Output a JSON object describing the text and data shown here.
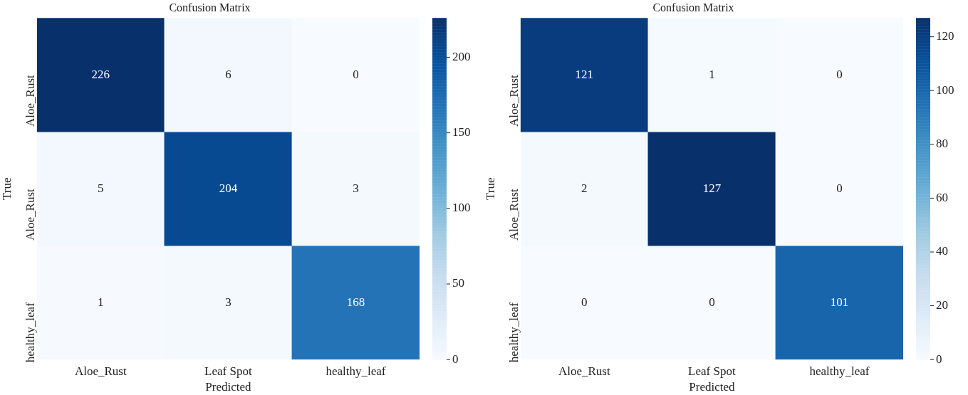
{
  "chart_data": [
    {
      "type": "heatmap",
      "title": "Confusion Matrix",
      "xlabel": "Predicted",
      "ylabel": "True",
      "categories": [
        "Aloe_Rust",
        "Leaf Spot",
        "healthy_leaf"
      ],
      "y_categories": [
        "Aloe_Rust",
        "Aloe_Rust",
        "healthy_leaf"
      ],
      "cells": [
        [
          226,
          6,
          0
        ],
        [
          5,
          204,
          3
        ],
        [
          1,
          3,
          168
        ]
      ],
      "clim": [
        0,
        226
      ],
      "cticks": [
        0,
        50,
        100,
        150,
        200
      ],
      "data_labels": true
    },
    {
      "type": "heatmap",
      "title": "Confusion Matrix",
      "xlabel": "Predicted",
      "ylabel": "True",
      "categories": [
        "Aloe_Rust",
        "Leaf Spot",
        "healthy_leaf"
      ],
      "y_categories": [
        "Aloe_Rust",
        "Aloe_Rust",
        "healthy_leaf"
      ],
      "cells": [
        [
          121,
          1,
          0
        ],
        [
          2,
          127,
          0
        ],
        [
          0,
          0,
          101
        ]
      ],
      "clim": [
        0,
        127
      ],
      "cticks": [
        0,
        20,
        40,
        60,
        80,
        100,
        120
      ],
      "data_labels": true
    }
  ]
}
